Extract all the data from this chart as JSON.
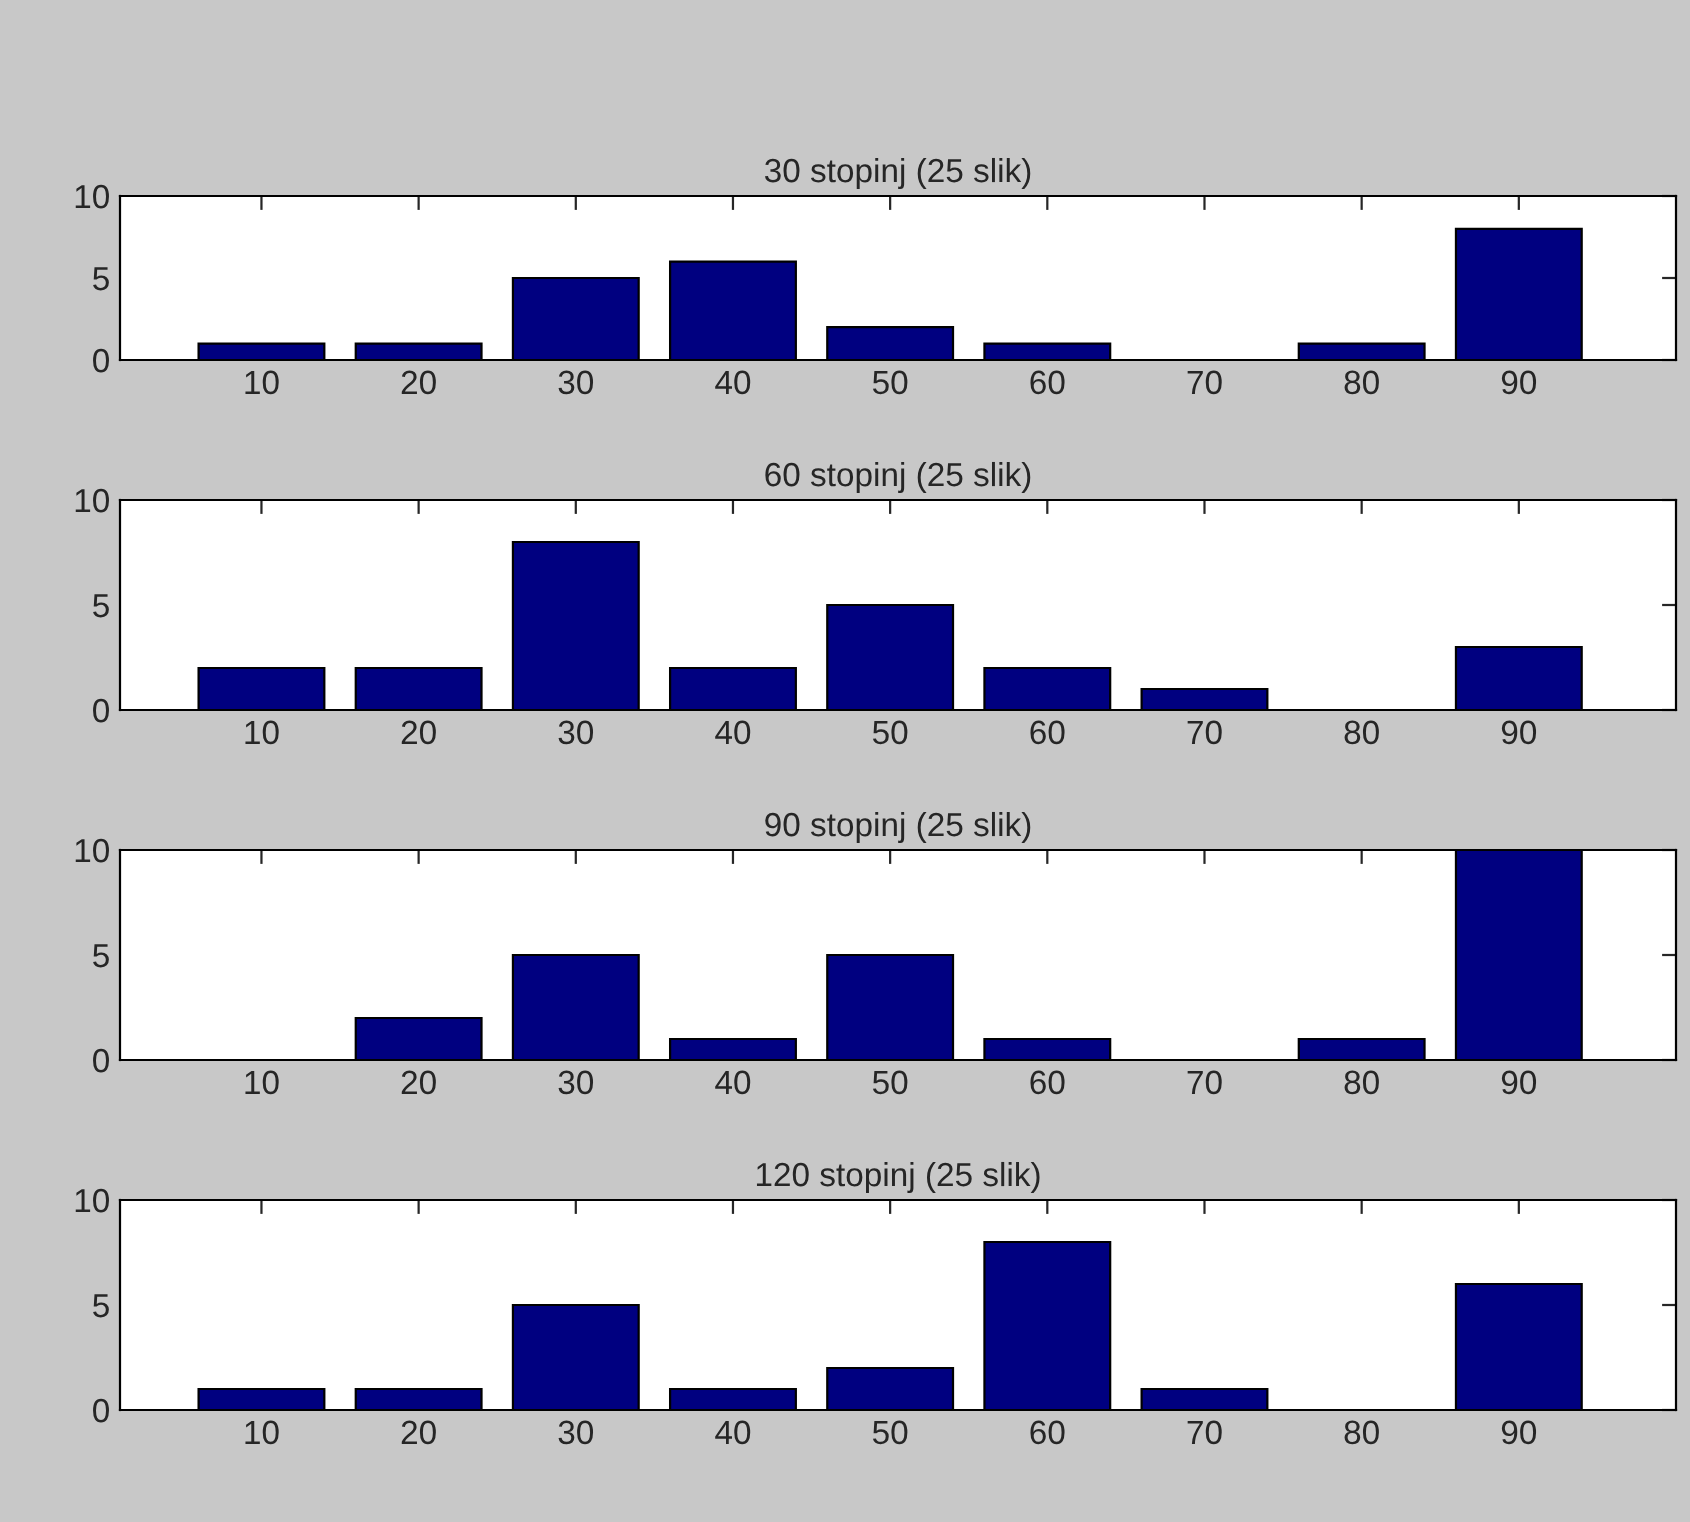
{
  "chart_data": [
    {
      "type": "bar",
      "title": "30 stopinj (25 slik)",
      "x": [
        10,
        20,
        30,
        40,
        50,
        60,
        70,
        80,
        90
      ],
      "values": [
        1,
        1,
        5,
        6,
        2,
        1,
        0,
        1,
        8
      ],
      "color": "#000080",
      "xlim": [
        1,
        100
      ],
      "ylim": [
        0,
        10
      ],
      "xticks": [
        10,
        20,
        30,
        40,
        50,
        60,
        70,
        80,
        90
      ],
      "yticks": [
        0,
        5,
        10
      ]
    },
    {
      "type": "bar",
      "title": "60 stopinj (25 slik)",
      "x": [
        10,
        20,
        30,
        40,
        50,
        60,
        70,
        80,
        90
      ],
      "values": [
        2,
        2,
        8,
        2,
        5,
        2,
        1,
        0,
        3
      ],
      "color": "#000080",
      "xlim": [
        1,
        100
      ],
      "ylim": [
        0,
        10
      ],
      "xticks": [
        10,
        20,
        30,
        40,
        50,
        60,
        70,
        80,
        90
      ],
      "yticks": [
        0,
        5,
        10
      ]
    },
    {
      "type": "bar",
      "title": "90 stopinj (25 slik)",
      "x": [
        10,
        20,
        30,
        40,
        50,
        60,
        70,
        80,
        90
      ],
      "values": [
        0,
        2,
        5,
        1,
        5,
        1,
        0,
        1,
        10
      ],
      "color": "#000080",
      "xlim": [
        1,
        100
      ],
      "ylim": [
        0,
        10
      ],
      "xticks": [
        10,
        20,
        30,
        40,
        50,
        60,
        70,
        80,
        90
      ],
      "yticks": [
        0,
        5,
        10
      ]
    },
    {
      "type": "bar",
      "title": "120 stopinj (25 slik)",
      "x": [
        10,
        20,
        30,
        40,
        50,
        60,
        70,
        80,
        90
      ],
      "values": [
        1,
        1,
        5,
        1,
        2,
        8,
        1,
        0,
        6
      ],
      "color": "#000080",
      "xlim": [
        1,
        100
      ],
      "ylim": [
        0,
        10
      ],
      "xticks": [
        10,
        20,
        30,
        40,
        50,
        60,
        70,
        80,
        90
      ],
      "yticks": [
        0,
        5,
        10
      ]
    }
  ]
}
